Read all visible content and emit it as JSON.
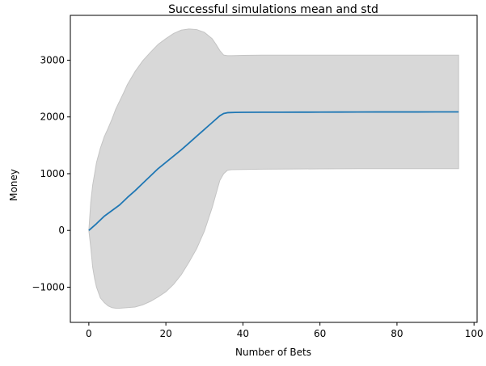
{
  "chart_data": {
    "type": "area",
    "title": "Successful simulations mean and std",
    "xlabel": "Number of Bets",
    "ylabel": "Money",
    "xlim": [
      -4.8,
      100.8
    ],
    "ylim": [
      -1620,
      3790
    ],
    "grid": false,
    "legend": "none",
    "x_ticks": [
      0,
      20,
      40,
      60,
      80,
      100
    ],
    "x_tick_labels": [
      "0",
      "20",
      "40",
      "60",
      "80",
      "100"
    ],
    "y_ticks": [
      -1000,
      0,
      1000,
      2000,
      3000
    ],
    "y_tick_labels": [
      "−1000",
      "0",
      "1000",
      "2000",
      "3000"
    ],
    "series": [
      {
        "role": "mean",
        "color": "#1f77b4",
        "x": [
          0,
          2,
          4,
          6,
          8,
          10,
          12,
          14,
          16,
          18,
          20,
          22,
          24,
          26,
          28,
          30,
          32,
          34,
          35,
          36,
          38,
          40,
          45,
          50,
          55,
          60,
          65,
          70,
          75,
          80,
          85,
          90,
          96
        ],
        "values": [
          0,
          120,
          250,
          350,
          450,
          580,
          700,
          830,
          960,
          1090,
          1200,
          1310,
          1420,
          1540,
          1660,
          1780,
          1900,
          2020,
          2060,
          2075,
          2080,
          2082,
          2083,
          2083,
          2084,
          2085,
          2086,
          2087,
          2088,
          2088,
          2088,
          2089,
          2089
        ]
      },
      {
        "role": "std-band",
        "color": "#d8d8d8",
        "edge_color": "#c4c4c4",
        "x": [
          0,
          0.5,
          1,
          1.5,
          2,
          3,
          4,
          5,
          6,
          7,
          8,
          9,
          10,
          12,
          14,
          16,
          18,
          20,
          22,
          24,
          26,
          28,
          30,
          32,
          33,
          34,
          35,
          36,
          37,
          40,
          45,
          50,
          60,
          70,
          80,
          90,
          96
        ],
        "upper": [
          0,
          500,
          800,
          1000,
          1200,
          1450,
          1650,
          1800,
          1960,
          2140,
          2280,
          2420,
          2570,
          2800,
          2990,
          3140,
          3280,
          3380,
          3470,
          3530,
          3550,
          3540,
          3490,
          3380,
          3280,
          3170,
          3090,
          3080,
          3080,
          3085,
          3088,
          3088,
          3088,
          3088,
          3088,
          3088,
          3088
        ],
        "lower": [
          0,
          -300,
          -650,
          -850,
          -1000,
          -1190,
          -1270,
          -1330,
          -1360,
          -1370,
          -1370,
          -1365,
          -1360,
          -1350,
          -1310,
          -1250,
          -1170,
          -1080,
          -950,
          -780,
          -560,
          -320,
          -10,
          400,
          640,
          880,
          1000,
          1060,
          1070,
          1075,
          1080,
          1082,
          1085,
          1088,
          1088,
          1088,
          1088
        ]
      }
    ]
  }
}
